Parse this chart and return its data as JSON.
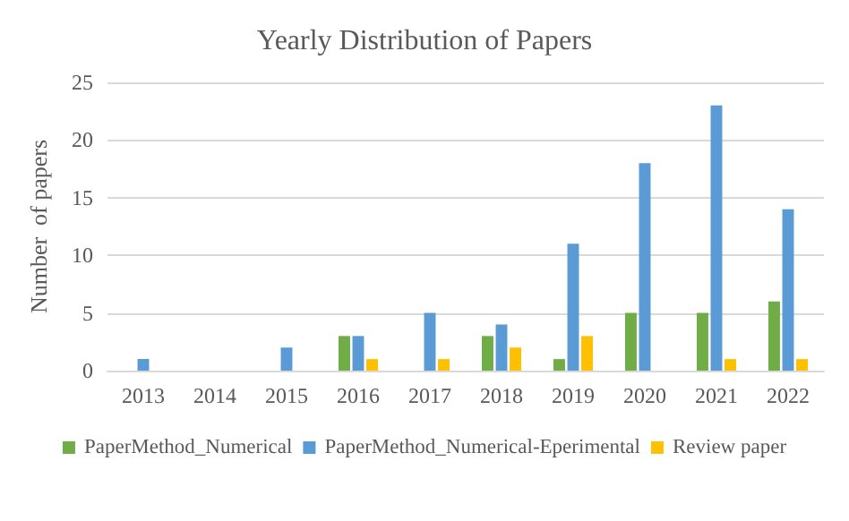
{
  "chart_data": {
    "type": "bar",
    "title": "Yearly Distribution of Papers",
    "ylabel": "Number  of papers",
    "categories": [
      "2013",
      "2014",
      "2015",
      "2016",
      "2017",
      "2018",
      "2019",
      "2020",
      "2021",
      "2022"
    ],
    "series": [
      {
        "name": "PaperMethod_Numerical",
        "color": "#70ad47",
        "values": [
          0,
          0,
          0,
          3,
          0,
          3,
          1,
          5,
          5,
          6
        ]
      },
      {
        "name": "PaperMethod_Numerical-Eperimental",
        "color": "#5b9bd5",
        "values": [
          1,
          0,
          2,
          3,
          5,
          4,
          11,
          18,
          23,
          14
        ]
      },
      {
        "name": "Review paper",
        "color": "#ffc000",
        "values": [
          0,
          0,
          0,
          1,
          1,
          2,
          3,
          0,
          1,
          1
        ]
      }
    ],
    "ylim": [
      0,
      25
    ],
    "yticks": [
      0,
      5,
      10,
      15,
      20,
      25
    ],
    "grid": "y",
    "legend": "bottom"
  }
}
